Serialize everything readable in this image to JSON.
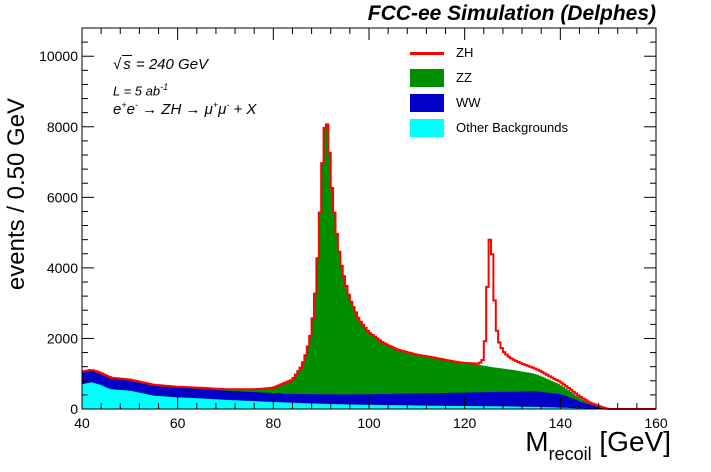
{
  "chart_data": {
    "type": "area",
    "stacked": true,
    "title": "FCC-ee Simulation (Delphes)",
    "xlabel_main": "M",
    "xlabel_sub": "recoil",
    "xlabel_unit": "[GeV]",
    "ylabel": "events / 0.50 GeV",
    "xlim": [
      40,
      160
    ],
    "ylim": [
      0,
      10800
    ],
    "xticks": [
      "40",
      "60",
      "80",
      "100",
      "120",
      "140",
      "160"
    ],
    "yticks": [
      "0",
      "2000",
      "4000",
      "6000",
      "8000",
      "10000"
    ],
    "xtick_values": [
      40,
      60,
      80,
      100,
      120,
      140,
      160
    ],
    "ytick_values": [
      0,
      2000,
      4000,
      6000,
      8000,
      10000
    ],
    "annotations": {
      "sqrt_s_label": "240 GeV",
      "sqrt_symbol": "√",
      "sqrt_var": "s",
      "lumi_label": "L = 5 ab",
      "lumi_exp": "-1",
      "process_pre": "e",
      "process_ep": "+",
      "process_e2": "e",
      "process_em": "-",
      "process_mid": " → ZH → μ",
      "process_mp": "+",
      "process_mu2": "μ",
      "process_mm": "-",
      "process_post": " + X"
    },
    "legend_position": "top-right",
    "colors": {
      "zh": "#ff0000",
      "zz": "#008f00",
      "ww": "#0000c8",
      "other": "#00ffff"
    },
    "series": [
      {
        "name": "Other Backgrounds",
        "key": "other",
        "x": [
          40,
          42,
          44,
          46,
          50,
          55,
          60,
          65,
          70,
          75,
          80,
          85,
          90,
          95,
          100,
          105,
          110,
          115,
          120,
          125,
          130,
          135,
          140,
          142,
          144,
          146,
          148,
          150
        ],
        "values": [
          700,
          760,
          680,
          560,
          520,
          380,
          330,
          300,
          260,
          230,
          200,
          170,
          150,
          130,
          120,
          110,
          100,
          90,
          85,
          80,
          70,
          60,
          40,
          30,
          20,
          10,
          5,
          0
        ]
      },
      {
        "name": "WW",
        "key": "ww",
        "x": [
          40,
          44,
          48,
          55,
          60,
          65,
          70,
          75,
          80,
          85,
          90,
          95,
          100,
          105,
          110,
          115,
          120,
          125,
          130,
          135,
          140,
          142,
          144,
          146,
          148,
          150
        ],
        "values": [
          350,
          330,
          310,
          290,
          280,
          270,
          260,
          255,
          250,
          255,
          270,
          280,
          300,
          320,
          340,
          360,
          380,
          400,
          420,
          440,
          380,
          300,
          200,
          120,
          60,
          0
        ]
      },
      {
        "name": "ZZ",
        "key": "zz",
        "x": [
          40,
          50,
          60,
          70,
          76,
          80,
          84,
          86,
          87,
          88,
          89,
          90,
          90.5,
          91,
          91.5,
          92,
          93,
          94,
          95,
          96,
          98,
          100,
          103,
          106,
          110,
          114,
          118,
          122,
          126,
          130,
          134,
          136,
          138,
          140,
          142,
          144,
          146,
          148,
          150
        ],
        "values": [
          10,
          10,
          20,
          40,
          80,
          150,
          400,
          800,
          1200,
          1800,
          3200,
          5800,
          7300,
          7800,
          7500,
          6200,
          4800,
          3800,
          3200,
          2700,
          2100,
          1750,
          1450,
          1250,
          1100,
          1000,
          880,
          800,
          700,
          620,
          520,
          450,
          360,
          270,
          180,
          100,
          40,
          10,
          0
        ]
      },
      {
        "name": "ZH",
        "key": "zh",
        "line": true,
        "x": [
          40,
          120,
          123,
          124,
          124.5,
          125,
          125.5,
          126,
          126.5,
          127,
          128,
          129,
          130,
          132,
          134,
          136,
          138,
          140,
          142,
          144,
          146,
          148,
          150
        ],
        "values": [
          0,
          0,
          30,
          200,
          1200,
          3300,
          3900,
          2500,
          1300,
          800,
          500,
          380,
          300,
          220,
          170,
          130,
          100,
          80,
          60,
          40,
          25,
          10,
          0
        ]
      }
    ],
    "legend": [
      {
        "label": "ZH",
        "key": "zh",
        "line": true
      },
      {
        "label": "ZZ",
        "key": "zz"
      },
      {
        "label": "WW",
        "key": "ww"
      },
      {
        "label": "Other Backgrounds",
        "key": "other"
      }
    ]
  }
}
